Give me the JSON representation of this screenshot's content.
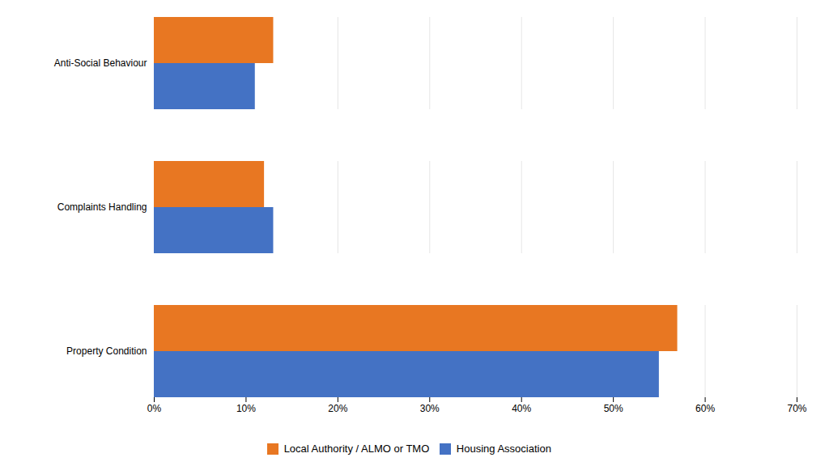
{
  "chart_data": {
    "type": "bar",
    "orientation": "horizontal",
    "categories": [
      "Property Condition",
      "Complaints Handling",
      "Anti-Social Behaviour"
    ],
    "series": [
      {
        "name": "Local Authority / ALMO or TMO",
        "color": "#E87722",
        "values": [
          0.57,
          0.12,
          0.13
        ]
      },
      {
        "name": "Housing Association",
        "color": "#4472C4",
        "values": [
          0.55,
          0.13,
          0.11
        ]
      }
    ],
    "xlim": [
      0,
      0.7
    ],
    "xticks": [
      {
        "value": 0.0,
        "label": "0%"
      },
      {
        "value": 0.1,
        "label": "10%"
      },
      {
        "value": 0.2,
        "label": "20%"
      },
      {
        "value": 0.3,
        "label": "30%"
      },
      {
        "value": 0.4,
        "label": "40%"
      },
      {
        "value": 0.5,
        "label": "50%"
      },
      {
        "value": 0.6,
        "label": "60%"
      },
      {
        "value": 0.7,
        "label": "70%"
      }
    ],
    "grid": true,
    "legend": "bottom"
  }
}
